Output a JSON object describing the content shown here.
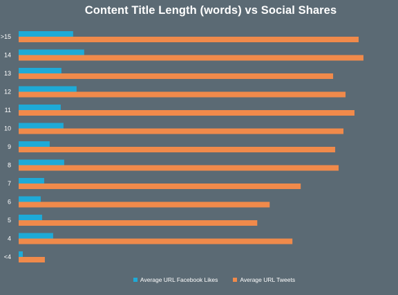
{
  "chart_data": {
    "type": "bar",
    "orientation": "horizontal",
    "title": "Content Title Length (words) vs Social Shares",
    "xlabel": "",
    "ylabel": "",
    "categories": [
      ">15",
      "14",
      "13",
      "12",
      "11",
      "10",
      "9",
      "8",
      "7",
      "6",
      "5",
      "4",
      "<4"
    ],
    "series": [
      {
        "name": "Average URL Facebook Likes",
        "color": "#1eaad7",
        "values": [
          79,
          95,
          62,
          84,
          61,
          65,
          45,
          66,
          37,
          32,
          34,
          50,
          6
        ]
      },
      {
        "name": "Average URL Tweets",
        "color": "#f08a4b",
        "values": [
          493,
          500,
          456,
          474,
          487,
          471,
          459,
          464,
          409,
          364,
          346,
          397,
          38
        ]
      }
    ],
    "xlim": [
      0,
      550
    ],
    "grid": false,
    "legend_position": "bottom"
  }
}
